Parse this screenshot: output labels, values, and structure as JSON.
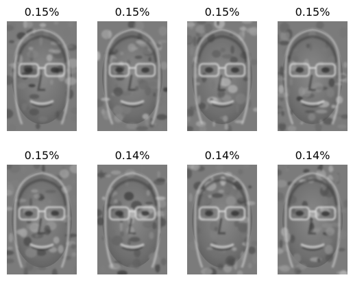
{
  "figure": {
    "panels": [
      {
        "title": "0.15%",
        "image": "eigenface-1"
      },
      {
        "title": "0.15%",
        "image": "eigenface-2"
      },
      {
        "title": "0.15%",
        "image": "eigenface-3"
      },
      {
        "title": "0.15%",
        "image": "eigenface-4"
      },
      {
        "title": "0.15%",
        "image": "eigenface-5"
      },
      {
        "title": "0.14%",
        "image": "eigenface-6"
      },
      {
        "title": "0.14%",
        "image": "eigenface-7"
      },
      {
        "title": "0.14%",
        "image": "eigenface-8"
      }
    ]
  }
}
